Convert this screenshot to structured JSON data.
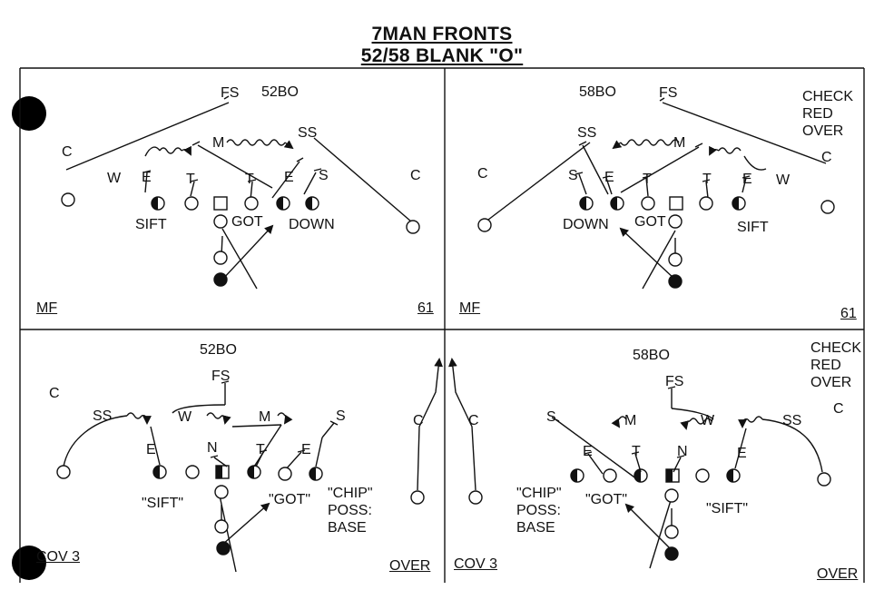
{
  "header": {
    "line1": "7MAN FRONTS",
    "line2": "52/58 BLANK \"O\""
  },
  "panels": {
    "top_left": {
      "play": "52BO",
      "corner_left": "MF",
      "corner_right": "61",
      "positions": {
        "fs": "FS",
        "m": "M",
        "ss": "SS",
        "c_left": "C",
        "w": "W",
        "e_left": "E",
        "t_left": "T",
        "t_right": "T",
        "e_right": "E",
        "s": "S",
        "c_right": "C"
      },
      "calls": {
        "sift": "SIFT",
        "got": "GOT",
        "down": "DOWN"
      }
    },
    "top_right": {
      "play": "58BO",
      "corner_left": "MF",
      "corner_right": "61",
      "check": [
        "CHECK",
        "RED",
        "OVER"
      ],
      "positions": {
        "fs": "FS",
        "ss": "SS",
        "m": "M",
        "c_left": "C",
        "s": "S",
        "e_left": "E",
        "t_left": "T",
        "t_right": "T",
        "e_right": "E",
        "w": "W",
        "c_right": "C"
      },
      "calls": {
        "down": "DOWN",
        "got": "GOT",
        "sift": "SIFT"
      }
    },
    "bottom_left": {
      "play": "52BO",
      "corner_left": "COV 3",
      "corner_right": "OVER",
      "positions": {
        "c_left": "C",
        "fs": "FS",
        "ss": "SS",
        "w": "W",
        "m": "M",
        "s": "S",
        "e_left": "E",
        "n": "N",
        "t": "T",
        "e_right": "E",
        "c_right": "C"
      },
      "calls": {
        "sift": "\"SIFT\"",
        "got": "\"GOT\"",
        "chip": "\"CHIP\"",
        "poss": "POSS:",
        "base": "BASE"
      }
    },
    "bottom_right": {
      "play": "58BO",
      "corner_left": "COV 3",
      "corner_right": "OVER",
      "check": [
        "CHECK",
        "RED",
        "OVER"
      ],
      "positions": {
        "c_left": "C",
        "fs": "FS",
        "s": "S",
        "m": "M",
        "w": "W",
        "ss": "SS",
        "c_right": "C",
        "e_left": "E",
        "t": "T",
        "n": "N",
        "e_right": "E"
      },
      "calls": {
        "chip": "\"CHIP\"",
        "poss": "POSS:",
        "base": "BASE",
        "got": "\"GOT\"",
        "sift": "\"SIFT\""
      }
    }
  }
}
